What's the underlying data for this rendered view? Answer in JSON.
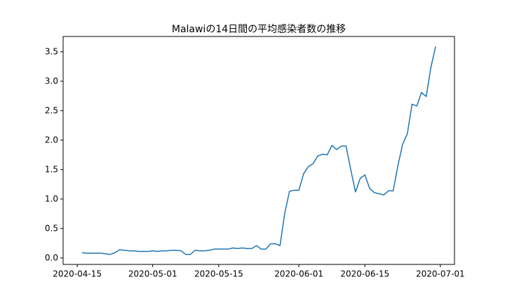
{
  "chart_data": {
    "type": "line",
    "title": "Malawiの14日間の平均感染者数の推移",
    "x": [
      "2020-04-16",
      "2020-04-17",
      "2020-04-18",
      "2020-04-19",
      "2020-04-20",
      "2020-04-21",
      "2020-04-22",
      "2020-04-23",
      "2020-04-24",
      "2020-04-25",
      "2020-04-26",
      "2020-04-27",
      "2020-04-28",
      "2020-04-29",
      "2020-04-30",
      "2020-05-01",
      "2020-05-02",
      "2020-05-03",
      "2020-05-04",
      "2020-05-05",
      "2020-05-06",
      "2020-05-07",
      "2020-05-08",
      "2020-05-09",
      "2020-05-10",
      "2020-05-11",
      "2020-05-12",
      "2020-05-13",
      "2020-05-14",
      "2020-05-15",
      "2020-05-16",
      "2020-05-17",
      "2020-05-18",
      "2020-05-19",
      "2020-05-20",
      "2020-05-21",
      "2020-05-22",
      "2020-05-23",
      "2020-05-24",
      "2020-05-25",
      "2020-05-26",
      "2020-05-27",
      "2020-05-28",
      "2020-05-29",
      "2020-05-30",
      "2020-05-31",
      "2020-06-01",
      "2020-06-02",
      "2020-06-03",
      "2020-06-04",
      "2020-06-05",
      "2020-06-06",
      "2020-06-07",
      "2020-06-08",
      "2020-06-09",
      "2020-06-10",
      "2020-06-11",
      "2020-06-12",
      "2020-06-13",
      "2020-06-14",
      "2020-06-15",
      "2020-06-16",
      "2020-06-17",
      "2020-06-18",
      "2020-06-19",
      "2020-06-20",
      "2020-06-21",
      "2020-06-22",
      "2020-06-23",
      "2020-06-24",
      "2020-06-25",
      "2020-06-26",
      "2020-06-27",
      "2020-06-28",
      "2020-06-29",
      "2020-06-30"
    ],
    "series": [
      {
        "color": "#1f77b4",
        "values": [
          0.09,
          0.08,
          0.08,
          0.08,
          0.08,
          0.07,
          0.06,
          0.09,
          0.14,
          0.13,
          0.12,
          0.12,
          0.11,
          0.11,
          0.11,
          0.12,
          0.11,
          0.12,
          0.12,
          0.13,
          0.13,
          0.12,
          0.06,
          0.06,
          0.13,
          0.12,
          0.12,
          0.13,
          0.15,
          0.15,
          0.15,
          0.15,
          0.17,
          0.16,
          0.17,
          0.16,
          0.16,
          0.21,
          0.15,
          0.15,
          0.24,
          0.24,
          0.21,
          0.76,
          1.13,
          1.15,
          1.15,
          1.43,
          1.55,
          1.6,
          1.73,
          1.76,
          1.75,
          1.91,
          1.84,
          1.9,
          1.9,
          1.5,
          1.12,
          1.35,
          1.41,
          1.18,
          1.11,
          1.09,
          1.07,
          1.14,
          1.14,
          1.57,
          1.93,
          2.11,
          2.61,
          2.58,
          2.81,
          2.74,
          3.24,
          3.59
        ]
      }
    ],
    "xlim": [
      "2020-04-12",
      "2020-07-04"
    ],
    "xticks": [
      "2020-04-15",
      "2020-05-01",
      "2020-05-15",
      "2020-06-01",
      "2020-06-15",
      "2020-07-01"
    ],
    "ylim": [
      -0.11,
      3.76
    ],
    "yticks": [
      {
        "value": 0,
        "label": "0.0"
      },
      0.5,
      {
        "value": 1,
        "label": "1.0"
      },
      1.5,
      {
        "value": 2,
        "label": "2.0"
      },
      2.5,
      {
        "value": 3,
        "label": "3.0"
      },
      3.5
    ]
  }
}
